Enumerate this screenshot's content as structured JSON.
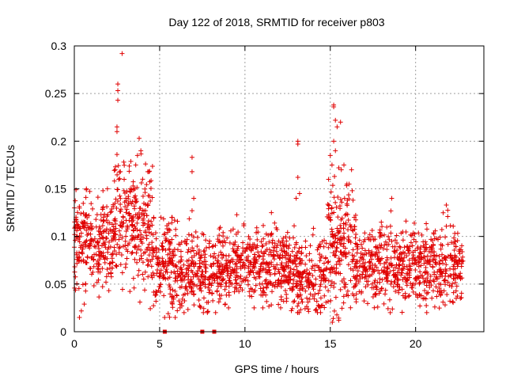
{
  "chart_data": {
    "type": "scatter",
    "title": "Day 122 of 2018, SRMTID for receiver p803",
    "xlabel": "GPS time / hours",
    "ylabel": "SRMTID / TECUs",
    "xlim": [
      0,
      24
    ],
    "ylim": [
      0,
      0.3
    ],
    "xticks": [
      0,
      5,
      10,
      15,
      20
    ],
    "yticks": [
      0,
      0.05,
      0.1,
      0.15,
      0.2,
      0.25,
      0.3
    ],
    "xtick_labels": [
      "0",
      "5",
      "10",
      "15",
      "20"
    ],
    "ytick_labels": [
      "0",
      "0.05",
      "0.1",
      "0.15",
      "0.2",
      "0.25",
      "0.3"
    ],
    "grid": true,
    "legend": "none",
    "marker": "+",
    "series_color": "#e00000",
    "zero_markers_x": [
      5.3,
      7.5,
      8.2
    ],
    "series": [
      {
        "name": "SRMTID",
        "profile": [
          {
            "x0": 0.0,
            "x1": 1.5,
            "mean": 0.095,
            "spread": 0.025,
            "min": 0.015,
            "max": 0.15,
            "n": 170
          },
          {
            "x0": 1.5,
            "x1": 2.3,
            "mean": 0.095,
            "spread": 0.025,
            "min": 0.03,
            "max": 0.15,
            "n": 90
          },
          {
            "x0": 2.3,
            "x1": 4.6,
            "mean": 0.115,
            "spread": 0.03,
            "min": 0.02,
            "max": 0.2,
            "n": 260
          },
          {
            "x0": 4.6,
            "x1": 6.0,
            "mean": 0.07,
            "spread": 0.025,
            "min": 0.015,
            "max": 0.12,
            "n": 150
          },
          {
            "x0": 6.0,
            "x1": 9.0,
            "mean": 0.065,
            "spread": 0.02,
            "min": 0.02,
            "max": 0.12,
            "n": 300
          },
          {
            "x0": 9.0,
            "x1": 12.5,
            "mean": 0.072,
            "spread": 0.02,
            "min": 0.025,
            "max": 0.125,
            "n": 360
          },
          {
            "x0": 12.5,
            "x1": 14.8,
            "mean": 0.06,
            "spread": 0.02,
            "min": 0.02,
            "max": 0.12,
            "n": 230
          },
          {
            "x0": 14.8,
            "x1": 16.5,
            "mean": 0.085,
            "spread": 0.035,
            "min": 0.01,
            "max": 0.17,
            "n": 200
          },
          {
            "x0": 16.5,
            "x1": 19.5,
            "mean": 0.07,
            "spread": 0.02,
            "min": 0.02,
            "max": 0.14,
            "n": 300
          },
          {
            "x0": 19.5,
            "x1": 22.8,
            "mean": 0.07,
            "spread": 0.02,
            "min": 0.02,
            "max": 0.13,
            "n": 330
          }
        ],
        "spikes": [
          {
            "x": 2.55,
            "y": 0.26
          },
          {
            "x": 2.55,
            "y": 0.253
          },
          {
            "x": 2.55,
            "y": 0.243
          },
          {
            "x": 2.5,
            "y": 0.215
          },
          {
            "x": 2.5,
            "y": 0.21
          },
          {
            "x": 2.5,
            "y": 0.186
          },
          {
            "x": 2.8,
            "y": 0.292
          },
          {
            "x": 2.6,
            "y": 0.16
          },
          {
            "x": 2.9,
            "y": 0.178
          },
          {
            "x": 3.8,
            "y": 0.203
          },
          {
            "x": 3.9,
            "y": 0.19
          },
          {
            "x": 3.7,
            "y": 0.185
          },
          {
            "x": 3.6,
            "y": 0.175
          },
          {
            "x": 2.4,
            "y": 0.17
          },
          {
            "x": 2.7,
            "y": 0.168
          },
          {
            "x": 6.9,
            "y": 0.183
          },
          {
            "x": 6.9,
            "y": 0.168
          },
          {
            "x": 7.0,
            "y": 0.14
          },
          {
            "x": 6.9,
            "y": 0.127
          },
          {
            "x": 13.1,
            "y": 0.2
          },
          {
            "x": 13.1,
            "y": 0.197
          },
          {
            "x": 13.1,
            "y": 0.162
          },
          {
            "x": 13.2,
            "y": 0.145
          },
          {
            "x": 13.0,
            "y": 0.14
          },
          {
            "x": 15.2,
            "y": 0.238
          },
          {
            "x": 15.2,
            "y": 0.236
          },
          {
            "x": 15.3,
            "y": 0.222
          },
          {
            "x": 15.4,
            "y": 0.215
          },
          {
            "x": 15.6,
            "y": 0.22
          },
          {
            "x": 15.2,
            "y": 0.2
          },
          {
            "x": 15.3,
            "y": 0.19
          },
          {
            "x": 15.1,
            "y": 0.175
          },
          {
            "x": 15.0,
            "y": 0.185
          },
          {
            "x": 15.8,
            "y": 0.175
          },
          {
            "x": 15.5,
            "y": 0.172
          },
          {
            "x": 14.9,
            "y": 0.16
          },
          {
            "x": 16.1,
            "y": 0.155
          },
          {
            "x": 18.6,
            "y": 0.14
          },
          {
            "x": 21.8,
            "y": 0.133
          },
          {
            "x": 0.1,
            "y": 0.149
          },
          {
            "x": 0.3,
            "y": 0.015
          },
          {
            "x": 15.5,
            "y": 0.012
          }
        ]
      }
    ]
  }
}
